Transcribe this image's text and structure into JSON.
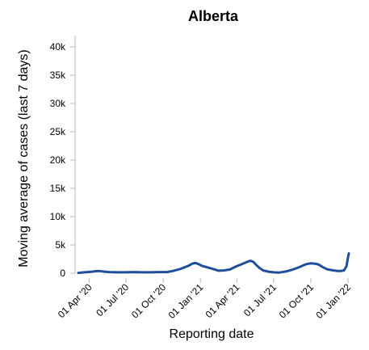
{
  "chart_data": {
    "type": "line",
    "title": "Alberta",
    "xlabel": "Reporting date",
    "ylabel": "Moving average of cases (last 7 days)",
    "x_type": "date",
    "xlim": [
      "2020-03-01",
      "2022-01-03"
    ],
    "ylim": [
      0,
      42000
    ],
    "x_ticks": [
      {
        "date": "2020-04-01",
        "label": "01 Apr '20"
      },
      {
        "date": "2020-07-01",
        "label": "01 Jul '20"
      },
      {
        "date": "2020-10-01",
        "label": "01 Oct '20"
      },
      {
        "date": "2021-01-01",
        "label": "01 Jan '21"
      },
      {
        "date": "2021-04-01",
        "label": "01 Apr '21"
      },
      {
        "date": "2021-07-01",
        "label": "01 Jul '21"
      },
      {
        "date": "2021-10-01",
        "label": "01 Oct '21"
      },
      {
        "date": "2022-01-01",
        "label": "01 Jan '22"
      }
    ],
    "y_ticks": [
      {
        "value": 0,
        "label": "0"
      },
      {
        "value": 5000,
        "label": "5k"
      },
      {
        "value": 10000,
        "label": "10k"
      },
      {
        "value": 15000,
        "label": "15k"
      },
      {
        "value": 20000,
        "label": "20k"
      },
      {
        "value": 25000,
        "label": "25k"
      },
      {
        "value": 30000,
        "label": "30k"
      },
      {
        "value": 35000,
        "label": "35k"
      },
      {
        "value": 40000,
        "label": "40k"
      }
    ],
    "grid": false,
    "legend": "none",
    "line_color": "#1f4e9a",
    "series": [
      {
        "x": [
          "2020-03-05",
          "2020-03-20",
          "2020-04-05",
          "2020-04-15",
          "2020-04-25",
          "2020-05-05",
          "2020-05-20",
          "2020-06-10",
          "2020-07-01",
          "2020-07-20",
          "2020-08-10",
          "2020-09-01",
          "2020-09-20",
          "2020-10-10",
          "2020-10-25",
          "2020-11-10",
          "2020-11-25",
          "2020-12-05",
          "2020-12-12",
          "2020-12-20",
          "2020-12-28",
          "2021-01-05",
          "2021-01-15",
          "2021-01-30",
          "2021-02-15",
          "2021-03-01",
          "2021-03-15",
          "2021-03-30",
          "2021-04-10",
          "2021-04-20",
          "2021-04-30",
          "2021-05-05",
          "2021-05-12",
          "2021-05-20",
          "2021-05-28",
          "2021-06-05",
          "2021-06-20",
          "2021-07-01",
          "2021-07-15",
          "2021-07-31",
          "2021-08-15",
          "2021-08-31",
          "2021-09-10",
          "2021-09-20",
          "2021-09-30",
          "2021-10-10",
          "2021-10-20",
          "2021-10-30",
          "2021-11-10",
          "2021-11-25",
          "2021-12-05",
          "2021-12-15",
          "2021-12-22",
          "2021-12-28",
          "2022-01-01",
          "2022-01-03"
        ],
        "y": [
          50,
          150,
          250,
          350,
          400,
          300,
          200,
          150,
          150,
          200,
          150,
          150,
          200,
          200,
          400,
          700,
          1100,
          1400,
          1700,
          1800,
          1600,
          1300,
          1100,
          800,
          450,
          500,
          650,
          1200,
          1500,
          1800,
          2100,
          2200,
          2000,
          1400,
          900,
          500,
          250,
          150,
          120,
          300,
          600,
          1000,
          1300,
          1600,
          1750,
          1700,
          1550,
          1100,
          700,
          500,
          400,
          400,
          500,
          1200,
          2800,
          3500
        ]
      }
    ]
  }
}
